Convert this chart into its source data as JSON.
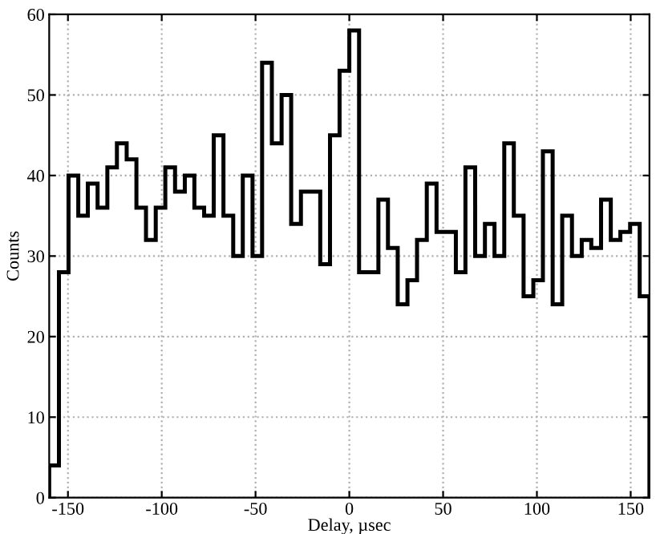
{
  "chart_data": {
    "type": "histogram",
    "xlabel": "Delay, µsec",
    "ylabel": "Counts",
    "bins": [
      -160,
      -154.8,
      -149.7,
      -144.5,
      -139.4,
      -134.2,
      -129.0,
      -123.9,
      -118.7,
      -113.5,
      -108.4,
      -103.2,
      -98.1,
      -92.9,
      -87.7,
      -82.6,
      -77.4,
      -72.3,
      -67.1,
      -61.9,
      -56.8,
      -51.6,
      -46.5,
      -41.3,
      -36.1,
      -31.0,
      -25.8,
      -20.6,
      -15.5,
      -10.3,
      -5.2,
      0,
      5.2,
      10.3,
      15.5,
      20.6,
      25.8,
      31.0,
      36.1,
      41.3,
      46.5,
      51.6,
      56.8,
      61.9,
      67.1,
      72.3,
      77.4,
      82.6,
      87.7,
      92.9,
      98.1,
      103.2,
      108.4,
      113.5,
      118.7,
      123.9,
      129.0,
      134.2,
      139.4,
      144.5,
      149.7,
      154.8,
      160
    ],
    "values": [
      4,
      28,
      40,
      35,
      39,
      36,
      41,
      44,
      42,
      36,
      32,
      36,
      41,
      38,
      40,
      36,
      35,
      45,
      35,
      30,
      40,
      30,
      54,
      44,
      50,
      34,
      38,
      38,
      29,
      45,
      53,
      58,
      28,
      28,
      37,
      31,
      24,
      27,
      32,
      39,
      33,
      33,
      28,
      41,
      30,
      34,
      30,
      44,
      35,
      25,
      27,
      43,
      24,
      35,
      30,
      32,
      31,
      37,
      32,
      33,
      34,
      25
    ],
    "color": "#000000",
    "xlim": [
      -160,
      160
    ],
    "xticks": [
      -150,
      -100,
      -50,
      0,
      50,
      100,
      150
    ],
    "ylim": [
      0,
      60
    ],
    "yticks": [
      0,
      10,
      20,
      30,
      40,
      50,
      60
    ],
    "grid": true
  }
}
